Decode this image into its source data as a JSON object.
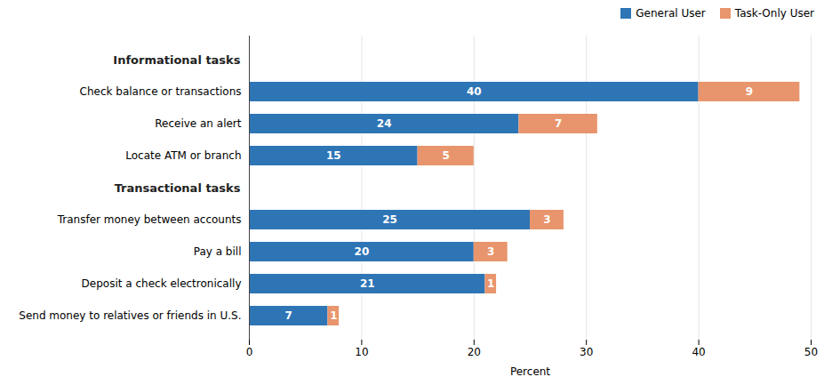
{
  "chart_data": {
    "type": "bar",
    "orientation": "horizontal",
    "stacked": true,
    "data_labels": true,
    "categories": [
      "Send money to relatives or friends in U.S.",
      "Deposit a check electronically",
      "Pay a bill",
      "Transfer money between accounts",
      "Transactional tasks",
      "Locate ATM or branch",
      "Receive an alert",
      "Check balance or transactions",
      "Informational tasks"
    ],
    "series": [
      {
        "name": "General User",
        "color": "#2E75B6",
        "values": [
          7,
          21,
          20,
          25,
          null,
          15,
          24,
          40,
          null
        ]
      },
      {
        "name": "Task-Only User",
        "color": "#E8956D",
        "values": [
          1,
          1,
          3,
          3,
          null,
          5,
          7,
          9,
          null
        ]
      }
    ],
    "x_label": "Percent",
    "xlim": [
      0,
      50
    ],
    "xticks": [
      0,
      10,
      20,
      30,
      40,
      50
    ],
    "grid": true,
    "legend": "upper right"
  }
}
